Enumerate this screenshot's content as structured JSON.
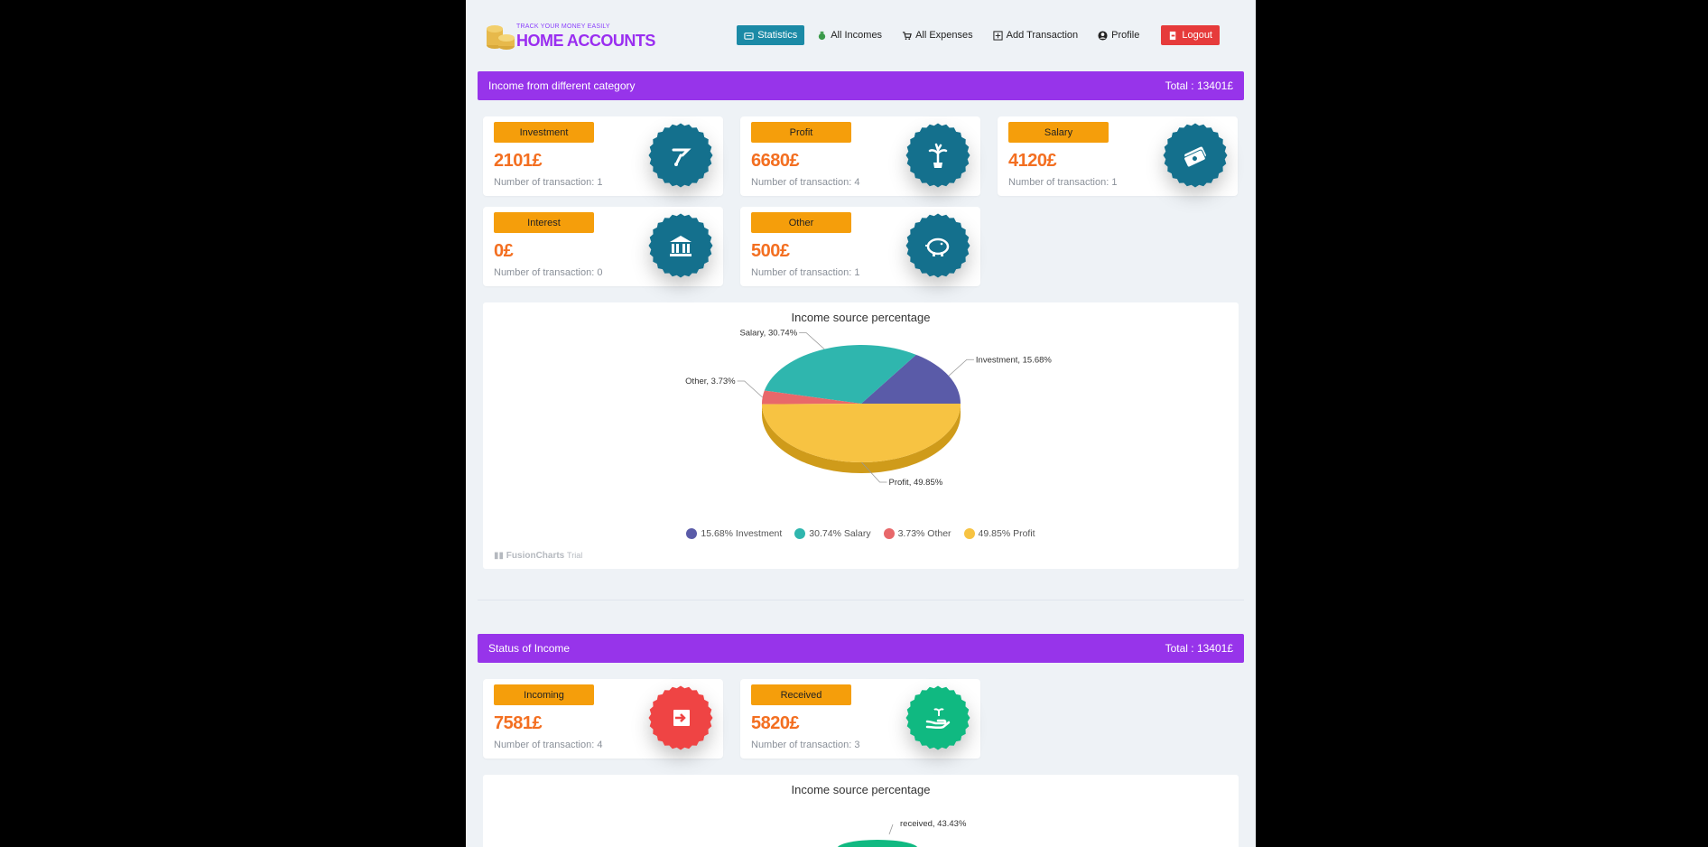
{
  "brand": {
    "tagline": "TRACK YOUR MONEY EASILY",
    "name": "HOME ACCOUNTS"
  },
  "nav": {
    "items": [
      {
        "label": "Statistics",
        "icon": "chart-icon",
        "active": true
      },
      {
        "label": "All Incomes",
        "icon": "money-bag-icon"
      },
      {
        "label": "All Expenses",
        "icon": "cart-icon"
      },
      {
        "label": "Add Transaction",
        "icon": "plus-square-icon"
      },
      {
        "label": "Profile",
        "icon": "user-circle-icon"
      },
      {
        "label": "Logout",
        "icon": "logout-icon"
      }
    ]
  },
  "income_category": {
    "title": "Income from different category",
    "total": "Total : 13401£",
    "cards": [
      {
        "label": "Investment",
        "amount": "2101£",
        "count": "Number of transaction: 1",
        "icon": "investment-icon"
      },
      {
        "label": "Profit",
        "amount": "6680£",
        "count": "Number of transaction: 4",
        "icon": "plant-growth-icon"
      },
      {
        "label": "Salary",
        "amount": "4120£",
        "count": "Number of transaction: 1",
        "icon": "cash-icon"
      },
      {
        "label": "Interest",
        "amount": "0£",
        "count": "Number of transaction: 0",
        "icon": "bank-icon"
      },
      {
        "label": "Other",
        "amount": "500£",
        "count": "Number of transaction: 1",
        "icon": "piggy-bank-icon"
      }
    ]
  },
  "chart1": {
    "title": "Income source percentage",
    "watermark": "FusionCharts",
    "watermark_suffix": "Trial",
    "colors": {
      "Investment": "#5a5ba8",
      "Salary": "#2fb6ae",
      "Other": "#e8686a",
      "Profit": "#f7c342"
    }
  },
  "chart_data": [
    {
      "type": "pie",
      "title": "Income source percentage",
      "slices": [
        {
          "name": "Investment",
          "value": 15.68,
          "label": "Investment, 15.68%",
          "legend": "15.68% Investment"
        },
        {
          "name": "Salary",
          "value": 30.74,
          "label": "Salary, 30.74%",
          "legend": "30.74% Salary"
        },
        {
          "name": "Other",
          "value": 3.73,
          "label": "Other, 3.73%",
          "legend": "3.73% Other"
        },
        {
          "name": "Profit",
          "value": 49.85,
          "label": "Profit, 49.85%",
          "legend": "49.85% Profit"
        }
      ],
      "legend_position": "bottom"
    },
    {
      "type": "pie",
      "title": "Income source percentage",
      "slices": [
        {
          "name": "received",
          "value": 43.43,
          "label": "received, 43.43%"
        }
      ]
    }
  ],
  "income_status": {
    "title": "Status of Income",
    "total": "Total : 13401£",
    "cards": [
      {
        "label": "Incoming",
        "amount": "7581£",
        "count": "Number of transaction: 4",
        "icon": "sign-in-icon"
      },
      {
        "label": "Received",
        "amount": "5820£",
        "count": "Number of transaction: 3",
        "icon": "hand-receive-icon"
      }
    ]
  },
  "chart2": {
    "title": "Income source percentage",
    "received_label": "received, 43.43%"
  }
}
